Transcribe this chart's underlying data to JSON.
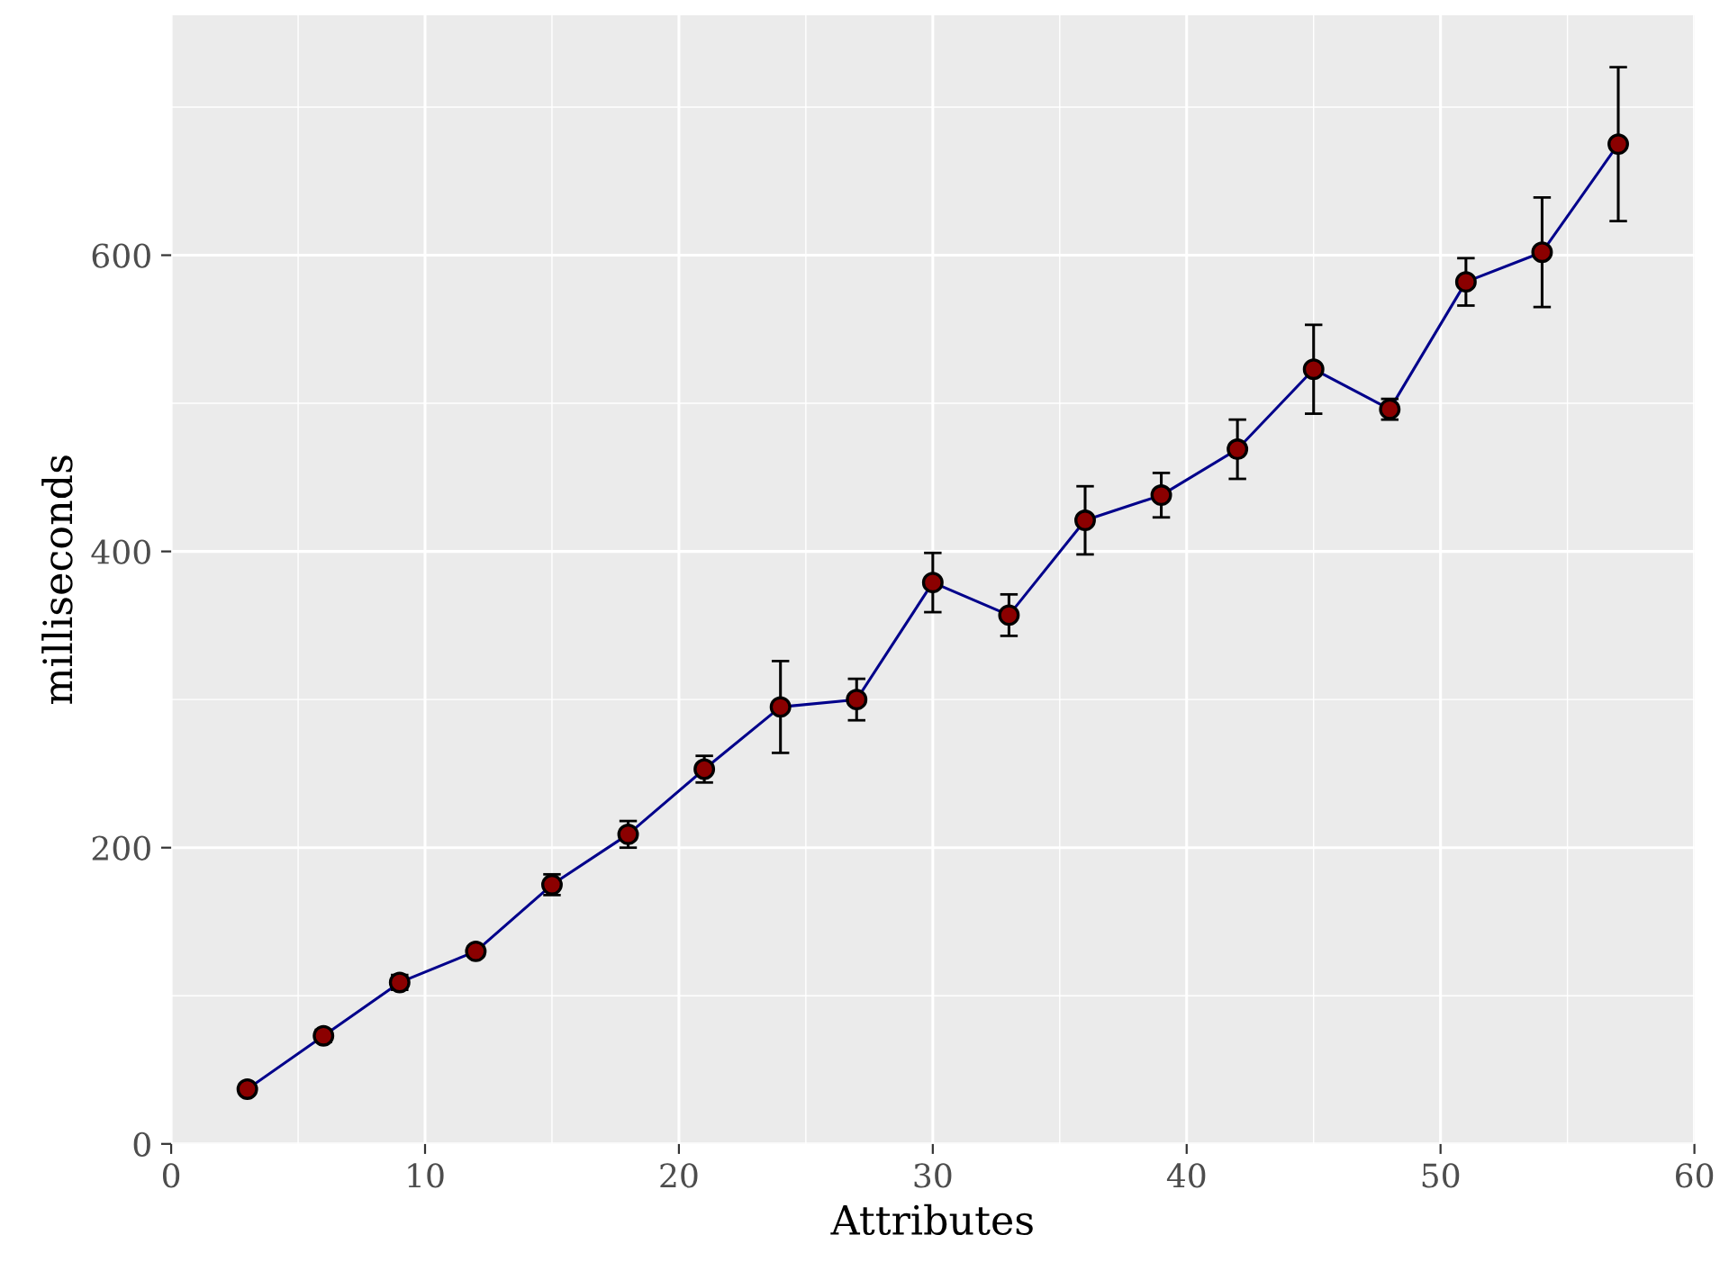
{
  "chart_data": {
    "type": "line",
    "xlabel": "Attributes",
    "ylabel": "milliseconds",
    "x": [
      3,
      6,
      9,
      12,
      15,
      18,
      21,
      24,
      27,
      30,
      33,
      36,
      39,
      42,
      45,
      48,
      51,
      54,
      57
    ],
    "series": [
      {
        "color": "#00008b",
        "marker": "circle",
        "values": [
          37,
          73,
          109,
          130,
          175,
          209,
          253,
          295,
          300,
          379,
          357,
          421,
          438,
          469,
          523,
          496,
          582,
          602,
          675
        ],
        "errors": [
          3,
          4,
          5,
          3,
          7,
          9,
          9,
          31,
          14,
          20,
          14,
          23,
          15,
          20,
          30,
          7,
          16,
          37,
          52
        ]
      }
    ],
    "xlim": [
      0,
      60
    ],
    "ylim": [
      0,
      762
    ],
    "xticks": [
      0,
      10,
      20,
      30,
      40,
      50,
      60,
      {
        "value": 5,
        "label": null
      },
      {
        "value": 15,
        "label": null
      },
      {
        "value": 25,
        "label": null
      },
      {
        "value": 35,
        "label": null
      },
      {
        "value": 45,
        "label": null
      },
      {
        "value": 55,
        "label": null
      }
    ],
    "yticks": [
      0,
      200,
      400,
      600,
      {
        "value": 100,
        "label": null
      },
      {
        "value": 300,
        "label": null
      },
      {
        "value": 500,
        "label": null
      },
      {
        "value": 700,
        "label": null
      }
    ],
    "grid": true
  }
}
